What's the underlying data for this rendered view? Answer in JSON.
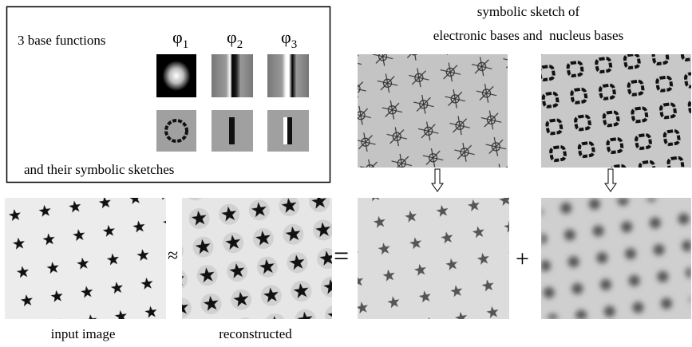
{
  "panel": {
    "label": "3 base functions",
    "caption": "and their symbolic sketches",
    "base_functions": [
      {
        "symbol": "φ",
        "subscript": "1"
      },
      {
        "symbol": "φ",
        "subscript": "2"
      },
      {
        "symbol": "φ",
        "subscript": "3"
      }
    ]
  },
  "sketch_title": {
    "line1": "symbolic sketch of",
    "line2": "electronic bases and  nucleus bases"
  },
  "operators": {
    "approx": "≈",
    "equals": "=",
    "plus": "+"
  },
  "captions": {
    "input": "input image",
    "reconstructed": "reconstructed"
  }
}
